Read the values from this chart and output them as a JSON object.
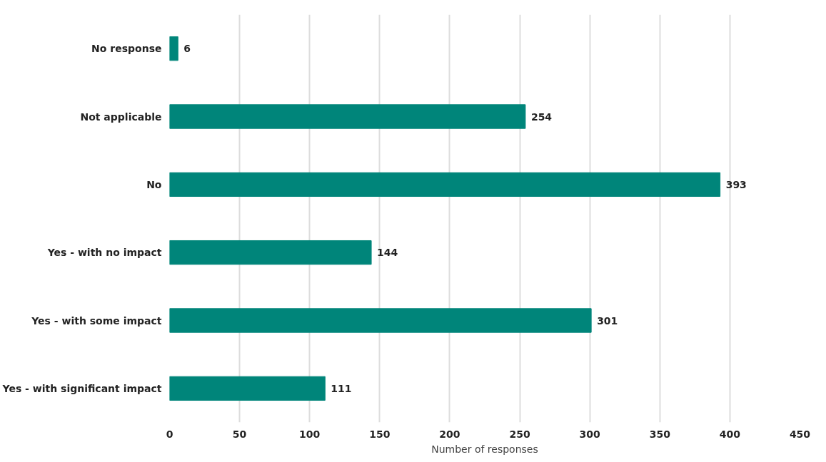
{
  "chart_data": {
    "type": "bar",
    "orientation": "horizontal",
    "xlabel": "Number of responses",
    "categories": [
      "No response",
      "Not applicable",
      "No",
      "Yes - with no impact",
      "Yes - with some impact",
      "Yes - with significant impact"
    ],
    "values": [
      6,
      254,
      393,
      144,
      301,
      111
    ],
    "color": "#00857a",
    "data_labels": true,
    "xlim": [
      0,
      450
    ],
    "xticks": [
      0,
      50,
      100,
      150,
      200,
      250,
      300,
      350,
      400,
      450
    ],
    "grid": "x"
  }
}
